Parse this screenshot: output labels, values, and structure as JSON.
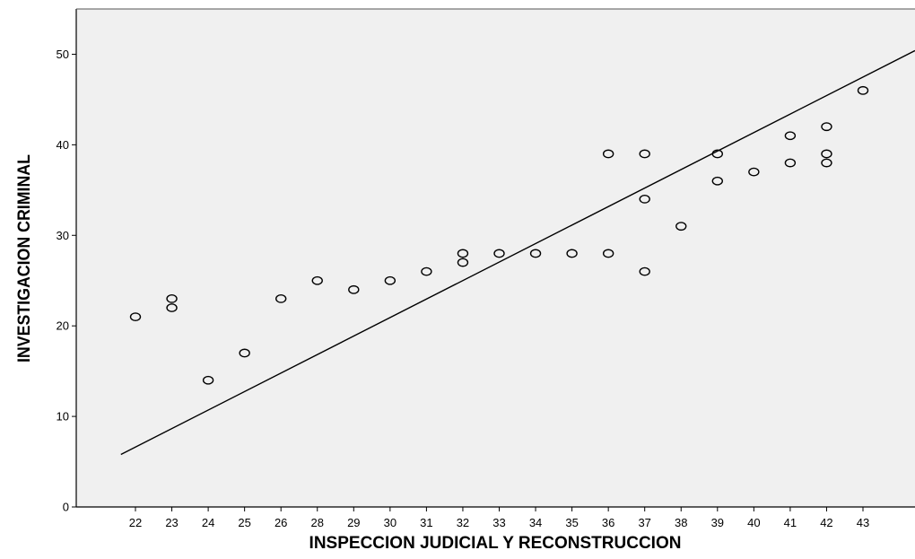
{
  "chart_data": {
    "type": "scatter",
    "title": "",
    "xlabel": "INSPECCION JUDICIAL Y RECONSTRUCCION",
    "ylabel": "INVESTIGACION CRIMINAL",
    "x_categories": [
      "22",
      "23",
      "24",
      "25",
      "26",
      "28",
      "29",
      "30",
      "31",
      "32",
      "33",
      "34",
      "35",
      "36",
      "37",
      "38",
      "39",
      "40",
      "41",
      "42",
      "43"
    ],
    "y_ticks": [
      0,
      10,
      20,
      30,
      40,
      50
    ],
    "ylim": [
      0,
      55
    ],
    "grid": false,
    "background_color": "#f0f0f0",
    "marker": "hollow-circle",
    "points": [
      {
        "x": "22",
        "y": 21
      },
      {
        "x": "23",
        "y": 23
      },
      {
        "x": "23",
        "y": 22
      },
      {
        "x": "24",
        "y": 14
      },
      {
        "x": "25",
        "y": 17
      },
      {
        "x": "26",
        "y": 23
      },
      {
        "x": "28",
        "y": 25
      },
      {
        "x": "29",
        "y": 24
      },
      {
        "x": "30",
        "y": 25
      },
      {
        "x": "31",
        "y": 26
      },
      {
        "x": "32",
        "y": 28
      },
      {
        "x": "32",
        "y": 27
      },
      {
        "x": "33",
        "y": 28
      },
      {
        "x": "34",
        "y": 28
      },
      {
        "x": "35",
        "y": 28
      },
      {
        "x": "36",
        "y": 39
      },
      {
        "x": "36",
        "y": 28
      },
      {
        "x": "37",
        "y": 39
      },
      {
        "x": "37",
        "y": 34
      },
      {
        "x": "37",
        "y": 26
      },
      {
        "x": "38",
        "y": 31
      },
      {
        "x": "39",
        "y": 39
      },
      {
        "x": "39",
        "y": 36
      },
      {
        "x": "40",
        "y": 37
      },
      {
        "x": "41",
        "y": 41
      },
      {
        "x": "41",
        "y": 38
      },
      {
        "x": "42",
        "y": 42
      },
      {
        "x": "42",
        "y": 39
      },
      {
        "x": "42",
        "y": 38
      },
      {
        "x": "43",
        "y": 46
      }
    ],
    "fit_line": {
      "type": "linear",
      "start": {
        "x_index": -0.4,
        "y": 5.8
      },
      "end": {
        "x_index": 21.5,
        "y": 50.4
      }
    }
  }
}
